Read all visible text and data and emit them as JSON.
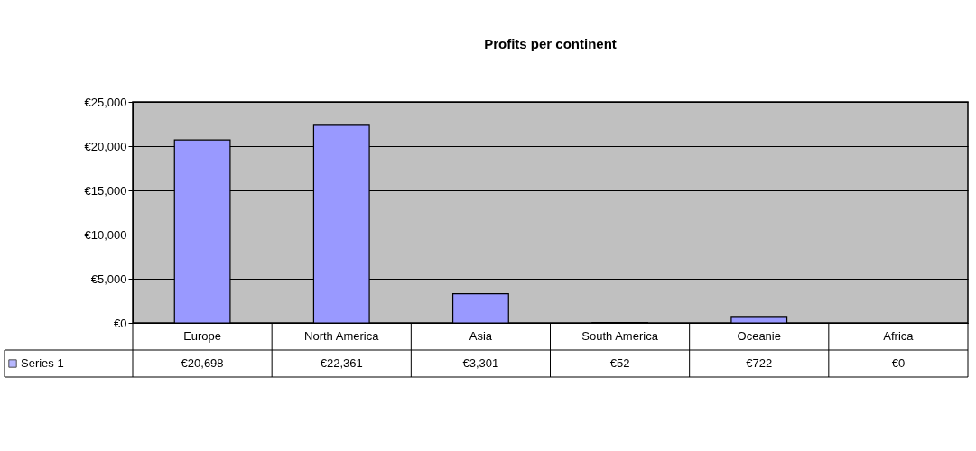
{
  "chart_data": {
    "type": "bar",
    "title": "Profits per continent",
    "categories": [
      "Europe",
      "North America",
      "Asia",
      "South America",
      "Oceanie",
      "Africa"
    ],
    "series": [
      {
        "name": "Series 1",
        "color": "#9999ff",
        "values": [
          20698,
          22361,
          3301,
          52,
          722,
          0
        ],
        "value_labels": [
          "€20,698",
          "€22,361",
          "€3,301",
          "€52",
          "€722",
          "€0"
        ]
      }
    ],
    "ylim": [
      0,
      25000
    ],
    "yticks": [
      {
        "value": 0,
        "label": "€0"
      },
      {
        "value": 5000,
        "label": "€5,000"
      },
      {
        "value": 10000,
        "label": "€10,000"
      },
      {
        "value": 15000,
        "label": "€15,000"
      },
      {
        "value": 20000,
        "label": "€20,000"
      },
      {
        "value": 25000,
        "label": "€25,000"
      }
    ],
    "grid": "y",
    "legend": "bottom"
  }
}
